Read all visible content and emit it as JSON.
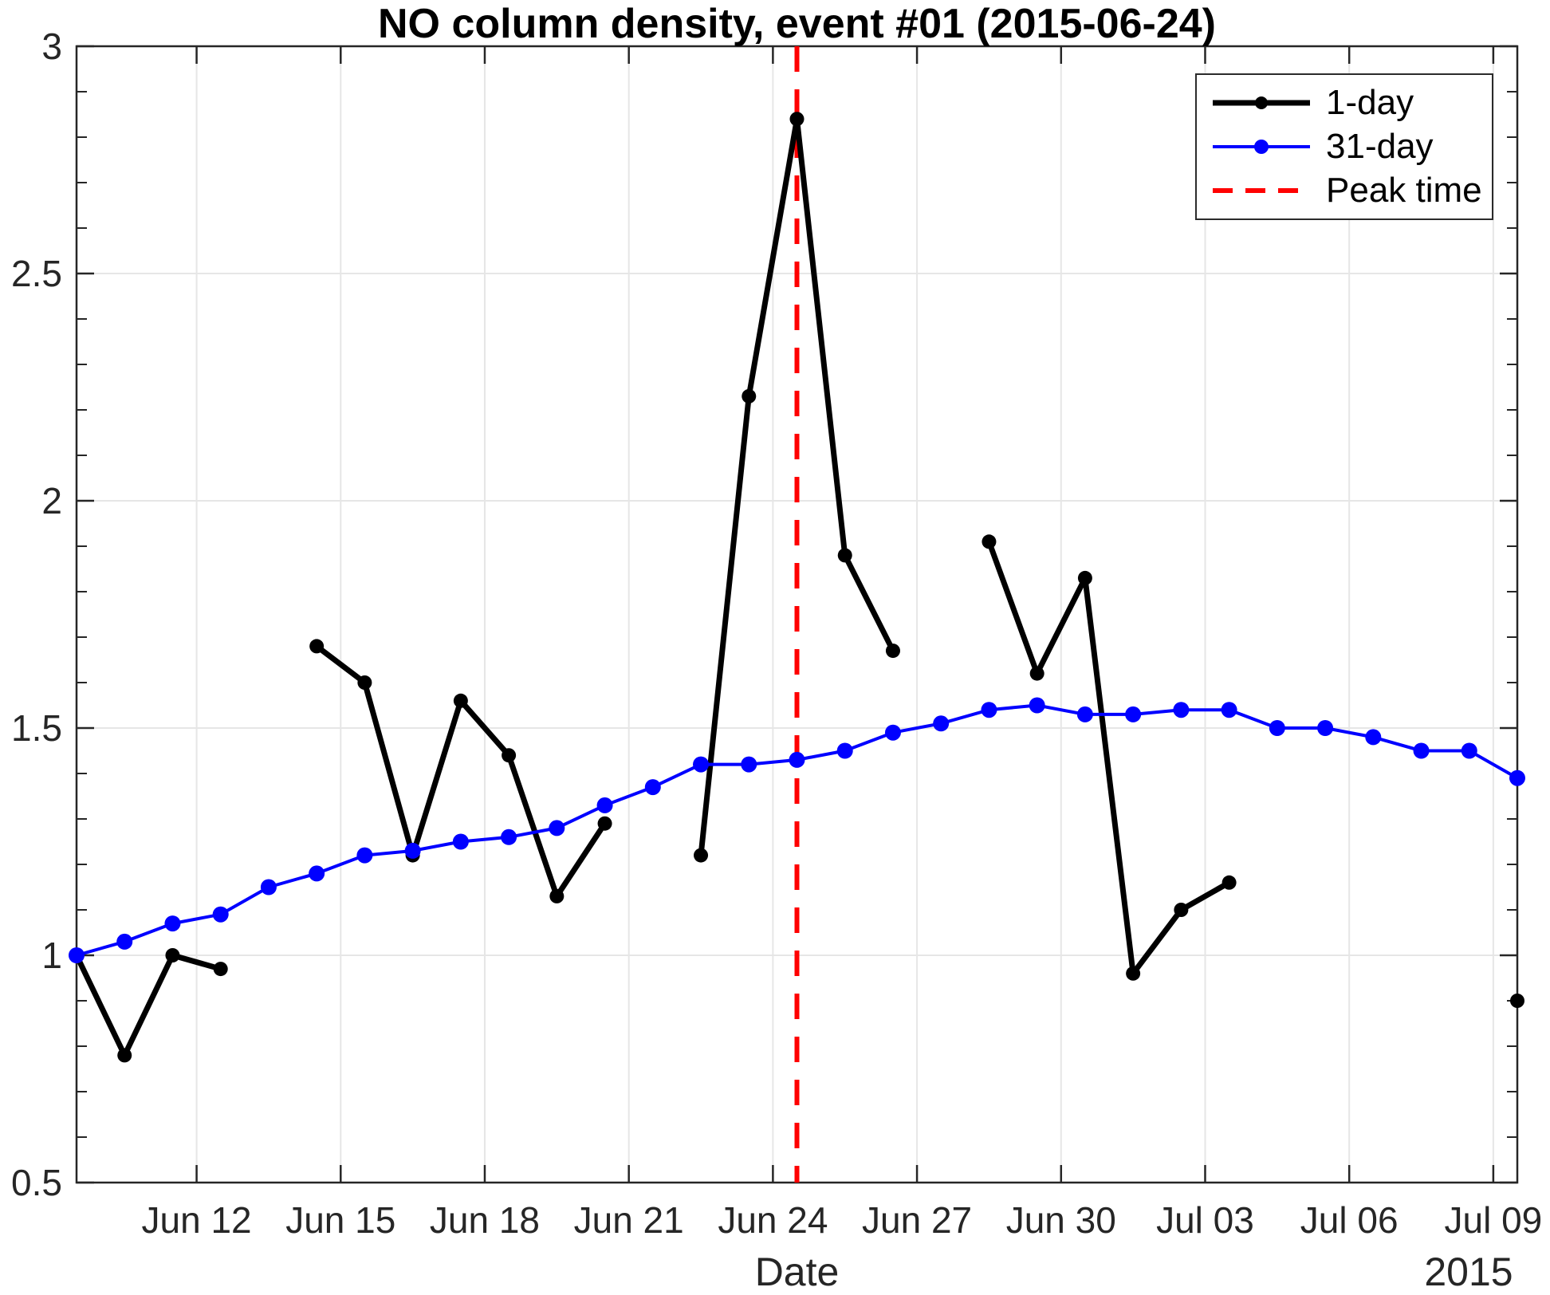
{
  "title": "NO column density, event #01 (2015-06-24)",
  "xlabel": "Date",
  "year_label": "2015",
  "colors": {
    "series_1day": "#000000",
    "series_31day": "#0000ff",
    "peak_line": "#ff0000",
    "grid": "#e6e6e6",
    "axis": "#262626",
    "background": "#ffffff"
  },
  "chart_data": {
    "type": "line",
    "title": "NO column density, event #01 (2015-06-24)",
    "xlabel": "Date",
    "x_axis_year": "2015",
    "x_unit_note": "x = day of June 2015 at 12:00 (31.5 means Jul 1 12:00); axis spans Jun 9 12:00 to Jul 9 12:00",
    "xlim": [
      9.5,
      39.5
    ],
    "ylim": [
      0.5,
      3.0
    ],
    "grid": true,
    "x_ticks": [
      {
        "x": 12,
        "label": "Jun 12"
      },
      {
        "x": 15,
        "label": "Jun 15"
      },
      {
        "x": 18,
        "label": "Jun 18"
      },
      {
        "x": 21,
        "label": "Jun 21"
      },
      {
        "x": 24,
        "label": "Jun 24"
      },
      {
        "x": 27,
        "label": "Jun 27"
      },
      {
        "x": 30,
        "label": "Jun 30"
      },
      {
        "x": 33,
        "label": "Jul 03"
      },
      {
        "x": 36,
        "label": "Jul 06"
      },
      {
        "x": 39,
        "label": "Jul 09"
      }
    ],
    "y_ticks": [
      {
        "v": 0.5,
        "label": "0.5"
      },
      {
        "v": 1,
        "label": "1"
      },
      {
        "v": 1.5,
        "label": "1.5"
      },
      {
        "v": 2,
        "label": "2"
      },
      {
        "v": 2.5,
        "label": "2.5"
      },
      {
        "v": 3,
        "label": "3"
      }
    ],
    "y_minor_tick_step": 0.1,
    "series": [
      {
        "name": "1-day",
        "color": "#000000",
        "style": "solid",
        "marker": "dot",
        "line_width": 7,
        "marker_radius": 9,
        "segments": [
          [
            [
              9.5,
              1.0
            ],
            [
              10.5,
              0.78
            ],
            [
              11.5,
              1.0
            ],
            [
              12.5,
              0.97
            ]
          ],
          [
            [
              14.5,
              1.68
            ],
            [
              15.5,
              1.6
            ],
            [
              16.5,
              1.22
            ],
            [
              17.5,
              1.56
            ],
            [
              18.5,
              1.44
            ],
            [
              19.5,
              1.13
            ],
            [
              20.5,
              1.29
            ]
          ],
          [
            [
              22.5,
              1.22
            ],
            [
              23.5,
              2.23
            ],
            [
              24.5,
              2.84
            ],
            [
              25.5,
              1.88
            ],
            [
              26.5,
              1.67
            ]
          ],
          [
            [
              28.5,
              1.91
            ],
            [
              29.5,
              1.62
            ],
            [
              30.5,
              1.83
            ],
            [
              31.5,
              0.96
            ],
            [
              32.5,
              1.1
            ],
            [
              33.5,
              1.16
            ]
          ],
          [
            [
              39.5,
              0.9
            ]
          ]
        ]
      },
      {
        "name": "31-day",
        "color": "#0000ff",
        "style": "solid",
        "marker": "dot",
        "line_width": 4,
        "marker_radius": 10,
        "points": [
          [
            9.5,
            1.0
          ],
          [
            10.5,
            1.03
          ],
          [
            11.5,
            1.07
          ],
          [
            12.5,
            1.09
          ],
          [
            13.5,
            1.15
          ],
          [
            14.5,
            1.18
          ],
          [
            15.5,
            1.22
          ],
          [
            16.5,
            1.23
          ],
          [
            17.5,
            1.25
          ],
          [
            18.5,
            1.26
          ],
          [
            19.5,
            1.28
          ],
          [
            20.5,
            1.33
          ],
          [
            21.5,
            1.37
          ],
          [
            22.5,
            1.42
          ],
          [
            23.5,
            1.42
          ],
          [
            24.5,
            1.43
          ],
          [
            25.5,
            1.45
          ],
          [
            26.5,
            1.49
          ],
          [
            27.5,
            1.51
          ],
          [
            28.5,
            1.54
          ],
          [
            29.5,
            1.55
          ],
          [
            30.5,
            1.53
          ],
          [
            31.5,
            1.53
          ],
          [
            32.5,
            1.54
          ],
          [
            33.5,
            1.54
          ],
          [
            34.5,
            1.5
          ],
          [
            35.5,
            1.5
          ],
          [
            36.5,
            1.48
          ],
          [
            37.5,
            1.45
          ],
          [
            38.5,
            1.45
          ],
          [
            39.5,
            1.39
          ]
        ]
      }
    ],
    "peak_line": {
      "label": "Peak time",
      "x": 24.5,
      "color": "#ff0000",
      "style": "dashed",
      "line_width": 6
    },
    "legend": [
      {
        "label": "1-day"
      },
      {
        "label": "31-day"
      },
      {
        "label": "Peak time"
      }
    ],
    "legend_position": "top-right"
  }
}
